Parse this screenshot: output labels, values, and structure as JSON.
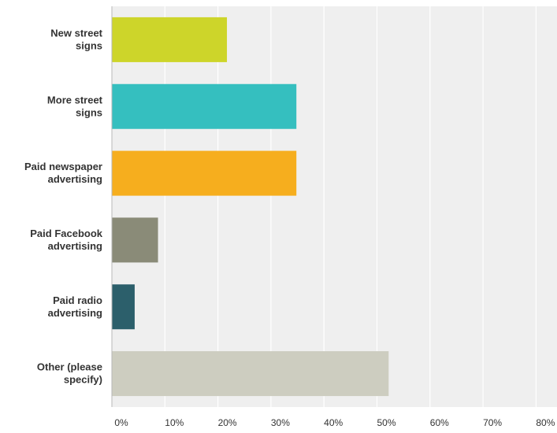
{
  "chart_data": {
    "type": "bar",
    "orientation": "horizontal",
    "categories": [
      [
        "New street",
        "signs"
      ],
      [
        "More street",
        "signs"
      ],
      [
        "Paid newspaper",
        "advertising"
      ],
      [
        "Paid Facebook",
        "advertising"
      ],
      [
        "Paid radio",
        "advertising"
      ],
      [
        "Other (please",
        "specify)"
      ]
    ],
    "values": [
      21.7,
      34.8,
      34.8,
      8.7,
      4.3,
      52.2
    ],
    "colors": [
      "#cdd52a",
      "#35bfbf",
      "#f6ae1e",
      "#8a8b78",
      "#2c5f6b",
      "#cdcdc0"
    ],
    "x_ticks": [
      "0%",
      "10%",
      "20%",
      "30%",
      "40%",
      "50%",
      "60%",
      "70%",
      "80%"
    ],
    "xlim": [
      0,
      85
    ],
    "grid": true,
    "legend": "none",
    "title": "",
    "xlabel": "",
    "ylabel": ""
  }
}
